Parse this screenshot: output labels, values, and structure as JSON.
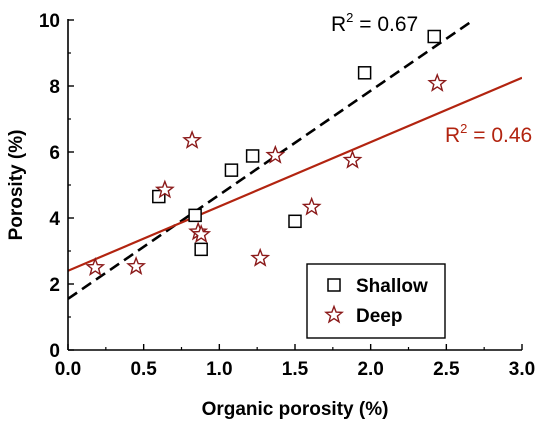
{
  "chart_data": {
    "type": "scatter",
    "xlabel": "Organic porosity (%)",
    "ylabel": "Porosity (%)",
    "xlim": [
      0,
      3
    ],
    "ylim": [
      0,
      10
    ],
    "x_ticks": [
      "0.0",
      "0.5",
      "1.0",
      "1.5",
      "2.0",
      "2.5",
      "3.0"
    ],
    "y_ticks": [
      "0",
      "2",
      "4",
      "6",
      "8",
      "10"
    ],
    "legend_position": "bottom-right",
    "series": [
      {
        "name": "Shallow",
        "marker": "square",
        "color": "#000000",
        "points": [
          {
            "x": 0.6,
            "y": 4.65
          },
          {
            "x": 0.84,
            "y": 4.08
          },
          {
            "x": 0.88,
            "y": 3.05
          },
          {
            "x": 1.08,
            "y": 5.45
          },
          {
            "x": 1.22,
            "y": 5.88
          },
          {
            "x": 1.5,
            "y": 3.9
          },
          {
            "x": 1.96,
            "y": 8.4
          },
          {
            "x": 2.42,
            "y": 9.5
          }
        ],
        "fit": {
          "x0": 0,
          "y0": 1.55,
          "x1": 2.68,
          "y1": 10.0,
          "style": "dashed",
          "color": "#000000",
          "r2_label": "R² = 0.67"
        }
      },
      {
        "name": "Deep",
        "marker": "star",
        "color": "#8b1a1a",
        "points": [
          {
            "x": 0.18,
            "y": 2.5
          },
          {
            "x": 0.45,
            "y": 2.53
          },
          {
            "x": 0.64,
            "y": 4.85
          },
          {
            "x": 0.82,
            "y": 6.35
          },
          {
            "x": 0.86,
            "y": 3.58
          },
          {
            "x": 0.88,
            "y": 3.5
          },
          {
            "x": 1.27,
            "y": 2.78
          },
          {
            "x": 1.37,
            "y": 5.9
          },
          {
            "x": 1.61,
            "y": 4.33
          },
          {
            "x": 1.88,
            "y": 5.75
          },
          {
            "x": 2.44,
            "y": 8.08
          }
        ],
        "fit": {
          "x0": 0,
          "y0": 2.4,
          "x1": 3.0,
          "y1": 8.25,
          "style": "solid",
          "color": "#b22410",
          "r2_label": "R² = 0.46"
        }
      }
    ]
  }
}
